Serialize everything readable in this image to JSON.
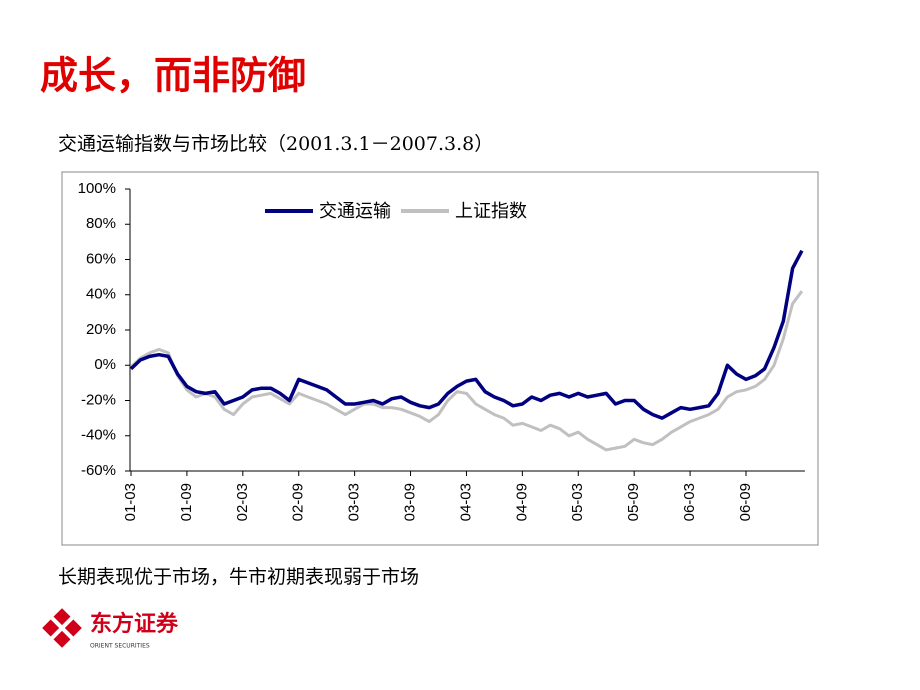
{
  "slide_title": "成长，而非防御",
  "chart_title": "交通运输指数与市场比较（2001.3.1－2007.3.8）",
  "caption": "长期表现优于市场，牛市初期表现弱于市场",
  "logo": {
    "name": "东方证券",
    "subtitle": "ORIENT SECURITIES"
  },
  "chart_data": {
    "type": "line",
    "categories": [
      "01-03",
      null,
      null,
      null,
      null,
      null,
      "01-09",
      null,
      null,
      null,
      null,
      null,
      "02-03",
      null,
      null,
      null,
      null,
      null,
      "02-09",
      null,
      null,
      null,
      null,
      null,
      "03-03",
      null,
      null,
      null,
      null,
      null,
      "03-09",
      null,
      null,
      null,
      null,
      null,
      "04-03",
      null,
      null,
      null,
      null,
      null,
      "04-09",
      null,
      null,
      null,
      null,
      null,
      "05-03",
      null,
      null,
      null,
      null,
      null,
      "05-09",
      null,
      null,
      null,
      null,
      null,
      "06-03",
      null,
      null,
      null,
      null,
      null,
      "06-09",
      null,
      null,
      null,
      null,
      null,
      null
    ],
    "series": [
      {
        "name": "交通运输",
        "color": "#000080",
        "values": [
          -2,
          3,
          5,
          6,
          5,
          -5,
          -12,
          -15,
          -16,
          -15,
          -22,
          -20,
          -18,
          -14,
          -13,
          -13,
          -16,
          -20,
          -8,
          -10,
          -12,
          -14,
          -18,
          -22,
          -22,
          -21,
          -20,
          -22,
          -19,
          -18,
          -21,
          -23,
          -24,
          -22,
          -16,
          -12,
          -9,
          -8,
          -15,
          -18,
          -20,
          -23,
          -22,
          -18,
          -20,
          -17,
          -16,
          -18,
          -16,
          -18,
          -17,
          -16,
          -22,
          -20,
          -20,
          -25,
          -28,
          -30,
          -27,
          -24,
          -25,
          -24,
          -23,
          -16,
          0,
          -5,
          -8,
          -6,
          -2,
          10,
          25,
          55,
          65
        ]
      },
      {
        "name": "上证指数",
        "color": "#c0c0c0",
        "values": [
          -1,
          4,
          7,
          9,
          7,
          -6,
          -14,
          -18,
          -16,
          -18,
          -25,
          -28,
          -22,
          -18,
          -17,
          -16,
          -19,
          -22,
          -16,
          -18,
          -20,
          -22,
          -25,
          -28,
          -25,
          -22,
          -22,
          -24,
          -24,
          -25,
          -27,
          -29,
          -32,
          -28,
          -20,
          -15,
          -16,
          -22,
          -25,
          -28,
          -30,
          -34,
          -33,
          -35,
          -37,
          -34,
          -36,
          -40,
          -38,
          -42,
          -45,
          -48,
          -47,
          -46,
          -42,
          -44,
          -45,
          -42,
          -38,
          -35,
          -32,
          -30,
          -28,
          -25,
          -18,
          -15,
          -14,
          -12,
          -8,
          0,
          15,
          35,
          42
        ]
      }
    ],
    "ylim": [
      -60,
      100
    ],
    "yticks": [
      {
        "value": -60,
        "label": "-60%"
      },
      {
        "value": -40,
        "label": "-40%"
      },
      {
        "value": -20,
        "label": "-20%"
      },
      {
        "value": 0,
        "label": "0%"
      },
      {
        "value": 20,
        "label": "20%"
      },
      {
        "value": 40,
        "label": "40%"
      },
      {
        "value": 60,
        "label": "60%"
      },
      {
        "value": 80,
        "label": "80%"
      },
      {
        "value": 100,
        "label": "100%"
      }
    ],
    "legend": "top"
  }
}
